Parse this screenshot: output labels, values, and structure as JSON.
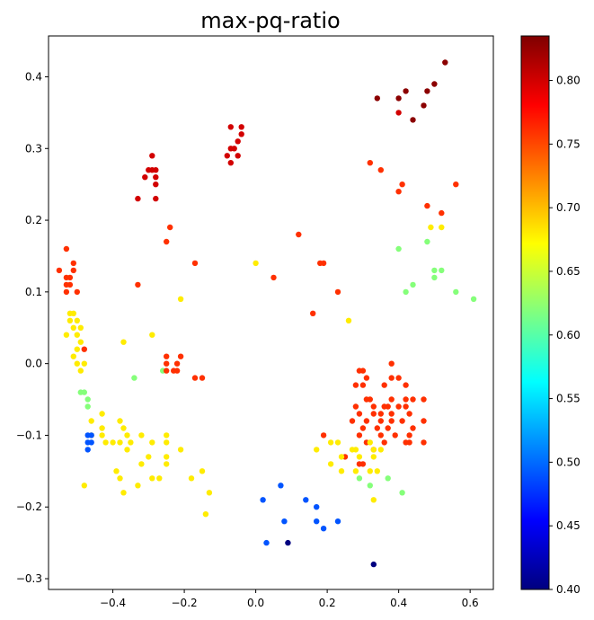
{
  "chart_data": {
    "type": "scatter",
    "title": "max-pq-ratio",
    "xlabel": "",
    "ylabel": "",
    "xlim": [
      -0.58,
      0.665
    ],
    "ylim": [
      -0.315,
      0.457
    ],
    "x_ticks": [
      -0.4,
      -0.2,
      0.0,
      0.2,
      0.4,
      0.6
    ],
    "x_tick_labels": [
      "−0.4",
      "−0.2",
      "0.0",
      "0.2",
      "0.4",
      "0.6"
    ],
    "y_ticks": [
      -0.3,
      -0.2,
      -0.1,
      0.0,
      0.1,
      0.2,
      0.3,
      0.4
    ],
    "y_tick_labels": [
      "−0.3",
      "−0.2",
      "−0.1",
      "0.0",
      "0.1",
      "0.2",
      "0.3",
      "0.4"
    ],
    "grid": false,
    "colorbar": {
      "colormap": "jet",
      "range": [
        0.4,
        0.835
      ],
      "ticks": [
        0.4,
        0.45,
        0.5,
        0.55,
        0.6,
        0.65,
        0.7,
        0.75,
        0.8
      ],
      "tick_labels": [
        "0.40",
        "0.45",
        "0.50",
        "0.55",
        "0.60",
        "0.65",
        "0.70",
        "0.75",
        "0.80"
      ]
    },
    "points": [
      {
        "x": 0.34,
        "y": 0.37,
        "c": 0.83
      },
      {
        "x": 0.4,
        "y": 0.37,
        "c": 0.83
      },
      {
        "x": 0.42,
        "y": 0.38,
        "c": 0.83
      },
      {
        "x": 0.47,
        "y": 0.36,
        "c": 0.83
      },
      {
        "x": 0.48,
        "y": 0.38,
        "c": 0.83
      },
      {
        "x": 0.5,
        "y": 0.39,
        "c": 0.83
      },
      {
        "x": 0.53,
        "y": 0.42,
        "c": 0.83
      },
      {
        "x": 0.44,
        "y": 0.34,
        "c": 0.83
      },
      {
        "x": 0.4,
        "y": 0.35,
        "c": 0.8
      },
      {
        "x": -0.07,
        "y": 0.33,
        "c": 0.8
      },
      {
        "x": -0.04,
        "y": 0.33,
        "c": 0.8
      },
      {
        "x": -0.04,
        "y": 0.32,
        "c": 0.8
      },
      {
        "x": -0.05,
        "y": 0.31,
        "c": 0.8
      },
      {
        "x": -0.07,
        "y": 0.3,
        "c": 0.8
      },
      {
        "x": -0.06,
        "y": 0.3,
        "c": 0.8
      },
      {
        "x": -0.05,
        "y": 0.29,
        "c": 0.8
      },
      {
        "x": -0.08,
        "y": 0.29,
        "c": 0.8
      },
      {
        "x": -0.07,
        "y": 0.28,
        "c": 0.8
      },
      {
        "x": -0.29,
        "y": 0.29,
        "c": 0.8
      },
      {
        "x": -0.29,
        "y": 0.27,
        "c": 0.8
      },
      {
        "x": -0.3,
        "y": 0.27,
        "c": 0.8
      },
      {
        "x": -0.28,
        "y": 0.27,
        "c": 0.8
      },
      {
        "x": -0.31,
        "y": 0.26,
        "c": 0.8
      },
      {
        "x": -0.28,
        "y": 0.26,
        "c": 0.8
      },
      {
        "x": -0.28,
        "y": 0.25,
        "c": 0.8
      },
      {
        "x": -0.33,
        "y": 0.23,
        "c": 0.8
      },
      {
        "x": -0.28,
        "y": 0.23,
        "c": 0.8
      },
      {
        "x": 0.32,
        "y": 0.28,
        "c": 0.76
      },
      {
        "x": 0.35,
        "y": 0.27,
        "c": 0.76
      },
      {
        "x": 0.4,
        "y": 0.24,
        "c": 0.76
      },
      {
        "x": 0.41,
        "y": 0.25,
        "c": 0.76
      },
      {
        "x": 0.56,
        "y": 0.25,
        "c": 0.76
      },
      {
        "x": 0.48,
        "y": 0.22,
        "c": 0.76
      },
      {
        "x": 0.52,
        "y": 0.21,
        "c": 0.76
      },
      {
        "x": -0.24,
        "y": 0.19,
        "c": 0.76
      },
      {
        "x": -0.25,
        "y": 0.17,
        "c": 0.76
      },
      {
        "x": -0.17,
        "y": 0.14,
        "c": 0.76
      },
      {
        "x": 0.05,
        "y": 0.12,
        "c": 0.76
      },
      {
        "x": 0.12,
        "y": 0.18,
        "c": 0.76
      },
      {
        "x": 0.18,
        "y": 0.14,
        "c": 0.76
      },
      {
        "x": 0.19,
        "y": 0.14,
        "c": 0.76
      },
      {
        "x": 0.23,
        "y": 0.1,
        "c": 0.76
      },
      {
        "x": 0.16,
        "y": 0.07,
        "c": 0.76
      },
      {
        "x": -0.33,
        "y": 0.11,
        "c": 0.76
      },
      {
        "x": 0.26,
        "y": 0.06,
        "c": 0.68
      },
      {
        "x": 0.0,
        "y": 0.14,
        "c": 0.68
      },
      {
        "x": -0.21,
        "y": 0.09,
        "c": 0.68
      },
      {
        "x": 0.49,
        "y": 0.19,
        "c": 0.68
      },
      {
        "x": 0.52,
        "y": 0.19,
        "c": 0.68
      },
      {
        "x": 0.4,
        "y": 0.16,
        "c": 0.62
      },
      {
        "x": 0.48,
        "y": 0.17,
        "c": 0.62
      },
      {
        "x": 0.5,
        "y": 0.13,
        "c": 0.62
      },
      {
        "x": 0.52,
        "y": 0.13,
        "c": 0.62
      },
      {
        "x": 0.5,
        "y": 0.12,
        "c": 0.62
      },
      {
        "x": 0.44,
        "y": 0.11,
        "c": 0.62
      },
      {
        "x": 0.42,
        "y": 0.1,
        "c": 0.62
      },
      {
        "x": 0.56,
        "y": 0.1,
        "c": 0.62
      },
      {
        "x": 0.61,
        "y": 0.09,
        "c": 0.62
      },
      {
        "x": -0.53,
        "y": 0.16,
        "c": 0.76
      },
      {
        "x": -0.51,
        "y": 0.14,
        "c": 0.76
      },
      {
        "x": -0.55,
        "y": 0.13,
        "c": 0.76
      },
      {
        "x": -0.51,
        "y": 0.13,
        "c": 0.76
      },
      {
        "x": -0.52,
        "y": 0.12,
        "c": 0.76
      },
      {
        "x": -0.53,
        "y": 0.12,
        "c": 0.76
      },
      {
        "x": -0.52,
        "y": 0.11,
        "c": 0.76
      },
      {
        "x": -0.53,
        "y": 0.11,
        "c": 0.76
      },
      {
        "x": -0.53,
        "y": 0.1,
        "c": 0.76
      },
      {
        "x": -0.5,
        "y": 0.1,
        "c": 0.76
      },
      {
        "x": -0.48,
        "y": 0.02,
        "c": 0.76
      },
      {
        "x": -0.52,
        "y": 0.07,
        "c": 0.68
      },
      {
        "x": -0.51,
        "y": 0.07,
        "c": 0.68
      },
      {
        "x": -0.5,
        "y": 0.06,
        "c": 0.68
      },
      {
        "x": -0.52,
        "y": 0.06,
        "c": 0.68
      },
      {
        "x": -0.49,
        "y": 0.05,
        "c": 0.68
      },
      {
        "x": -0.51,
        "y": 0.05,
        "c": 0.68
      },
      {
        "x": -0.53,
        "y": 0.04,
        "c": 0.68
      },
      {
        "x": -0.5,
        "y": 0.04,
        "c": 0.68
      },
      {
        "x": -0.49,
        "y": 0.03,
        "c": 0.68
      },
      {
        "x": -0.5,
        "y": 0.02,
        "c": 0.68
      },
      {
        "x": -0.51,
        "y": 0.01,
        "c": 0.68
      },
      {
        "x": -0.5,
        "y": 0.0,
        "c": 0.68
      },
      {
        "x": -0.48,
        "y": 0.0,
        "c": 0.68
      },
      {
        "x": -0.49,
        "y": -0.01,
        "c": 0.68
      },
      {
        "x": -0.37,
        "y": 0.03,
        "c": 0.68
      },
      {
        "x": -0.29,
        "y": 0.04,
        "c": 0.68
      },
      {
        "x": -0.49,
        "y": -0.04,
        "c": 0.62
      },
      {
        "x": -0.48,
        "y": -0.04,
        "c": 0.62
      },
      {
        "x": -0.47,
        "y": -0.05,
        "c": 0.62
      },
      {
        "x": -0.47,
        "y": -0.06,
        "c": 0.62
      },
      {
        "x": -0.34,
        "y": -0.02,
        "c": 0.62
      },
      {
        "x": -0.26,
        "y": -0.01,
        "c": 0.62
      },
      {
        "x": -0.25,
        "y": 0.01,
        "c": 0.76
      },
      {
        "x": -0.21,
        "y": 0.01,
        "c": 0.76
      },
      {
        "x": -0.22,
        "y": 0.0,
        "c": 0.76
      },
      {
        "x": -0.25,
        "y": -0.01,
        "c": 0.76
      },
      {
        "x": -0.23,
        "y": -0.01,
        "c": 0.76
      },
      {
        "x": -0.22,
        "y": -0.01,
        "c": 0.76
      },
      {
        "x": -0.25,
        "y": 0.0,
        "c": 0.76
      },
      {
        "x": -0.17,
        "y": -0.02,
        "c": 0.76
      },
      {
        "x": -0.15,
        "y": -0.02,
        "c": 0.76
      },
      {
        "x": -0.46,
        "y": -0.08,
        "c": 0.68
      },
      {
        "x": -0.43,
        "y": -0.07,
        "c": 0.68
      },
      {
        "x": -0.43,
        "y": -0.09,
        "c": 0.68
      },
      {
        "x": -0.38,
        "y": -0.08,
        "c": 0.68
      },
      {
        "x": -0.37,
        "y": -0.09,
        "c": 0.68
      },
      {
        "x": -0.36,
        "y": -0.1,
        "c": 0.68
      },
      {
        "x": -0.46,
        "y": -0.1,
        "c": 0.68
      },
      {
        "x": -0.43,
        "y": -0.1,
        "c": 0.68
      },
      {
        "x": -0.42,
        "y": -0.11,
        "c": 0.68
      },
      {
        "x": -0.4,
        "y": -0.11,
        "c": 0.68
      },
      {
        "x": -0.38,
        "y": -0.11,
        "c": 0.68
      },
      {
        "x": -0.36,
        "y": -0.12,
        "c": 0.68
      },
      {
        "x": -0.35,
        "y": -0.11,
        "c": 0.68
      },
      {
        "x": -0.32,
        "y": -0.1,
        "c": 0.68
      },
      {
        "x": -0.29,
        "y": -0.11,
        "c": 0.68
      },
      {
        "x": -0.25,
        "y": -0.1,
        "c": 0.68
      },
      {
        "x": -0.25,
        "y": -0.11,
        "c": 0.68
      },
      {
        "x": -0.21,
        "y": -0.12,
        "c": 0.68
      },
      {
        "x": -0.32,
        "y": -0.14,
        "c": 0.68
      },
      {
        "x": -0.3,
        "y": -0.13,
        "c": 0.68
      },
      {
        "x": -0.25,
        "y": -0.13,
        "c": 0.68
      },
      {
        "x": -0.25,
        "y": -0.14,
        "c": 0.68
      },
      {
        "x": -0.29,
        "y": -0.16,
        "c": 0.68
      },
      {
        "x": -0.27,
        "y": -0.16,
        "c": 0.68
      },
      {
        "x": -0.39,
        "y": -0.15,
        "c": 0.68
      },
      {
        "x": -0.38,
        "y": -0.16,
        "c": 0.68
      },
      {
        "x": -0.37,
        "y": -0.18,
        "c": 0.68
      },
      {
        "x": -0.33,
        "y": -0.17,
        "c": 0.68
      },
      {
        "x": -0.18,
        "y": -0.16,
        "c": 0.68
      },
      {
        "x": -0.15,
        "y": -0.15,
        "c": 0.68
      },
      {
        "x": -0.13,
        "y": -0.18,
        "c": 0.68
      },
      {
        "x": -0.14,
        "y": -0.21,
        "c": 0.68
      },
      {
        "x": -0.48,
        "y": -0.17,
        "c": 0.68
      },
      {
        "x": -0.47,
        "y": -0.1,
        "c": 0.49
      },
      {
        "x": -0.46,
        "y": -0.1,
        "c": 0.49
      },
      {
        "x": -0.47,
        "y": -0.11,
        "c": 0.49
      },
      {
        "x": -0.46,
        "y": -0.11,
        "c": 0.49
      },
      {
        "x": -0.47,
        "y": -0.12,
        "c": 0.49
      },
      {
        "x": 0.29,
        "y": -0.01,
        "c": 0.76
      },
      {
        "x": 0.3,
        "y": -0.01,
        "c": 0.76
      },
      {
        "x": 0.38,
        "y": 0.0,
        "c": 0.76
      },
      {
        "x": 0.31,
        "y": -0.02,
        "c": 0.76
      },
      {
        "x": 0.38,
        "y": -0.02,
        "c": 0.76
      },
      {
        "x": 0.4,
        "y": -0.02,
        "c": 0.76
      },
      {
        "x": 0.28,
        "y": -0.03,
        "c": 0.76
      },
      {
        "x": 0.3,
        "y": -0.03,
        "c": 0.76
      },
      {
        "x": 0.36,
        "y": -0.03,
        "c": 0.76
      },
      {
        "x": 0.42,
        "y": -0.03,
        "c": 0.76
      },
      {
        "x": 0.31,
        "y": -0.05,
        "c": 0.76
      },
      {
        "x": 0.32,
        "y": -0.05,
        "c": 0.76
      },
      {
        "x": 0.38,
        "y": -0.05,
        "c": 0.76
      },
      {
        "x": 0.42,
        "y": -0.05,
        "c": 0.76
      },
      {
        "x": 0.44,
        "y": -0.05,
        "c": 0.76
      },
      {
        "x": 0.47,
        "y": -0.05,
        "c": 0.76
      },
      {
        "x": 0.28,
        "y": -0.06,
        "c": 0.76
      },
      {
        "x": 0.33,
        "y": -0.06,
        "c": 0.76
      },
      {
        "x": 0.36,
        "y": -0.06,
        "c": 0.76
      },
      {
        "x": 0.37,
        "y": -0.06,
        "c": 0.76
      },
      {
        "x": 0.4,
        "y": -0.06,
        "c": 0.76
      },
      {
        "x": 0.29,
        "y": -0.07,
        "c": 0.76
      },
      {
        "x": 0.33,
        "y": -0.07,
        "c": 0.76
      },
      {
        "x": 0.35,
        "y": -0.07,
        "c": 0.76
      },
      {
        "x": 0.38,
        "y": -0.07,
        "c": 0.76
      },
      {
        "x": 0.42,
        "y": -0.06,
        "c": 0.76
      },
      {
        "x": 0.43,
        "y": -0.07,
        "c": 0.76
      },
      {
        "x": 0.27,
        "y": -0.08,
        "c": 0.76
      },
      {
        "x": 0.31,
        "y": -0.08,
        "c": 0.76
      },
      {
        "x": 0.35,
        "y": -0.08,
        "c": 0.76
      },
      {
        "x": 0.38,
        "y": -0.08,
        "c": 0.76
      },
      {
        "x": 0.41,
        "y": -0.08,
        "c": 0.76
      },
      {
        "x": 0.47,
        "y": -0.08,
        "c": 0.76
      },
      {
        "x": 0.3,
        "y": -0.09,
        "c": 0.76
      },
      {
        "x": 0.34,
        "y": -0.09,
        "c": 0.76
      },
      {
        "x": 0.37,
        "y": -0.09,
        "c": 0.76
      },
      {
        "x": 0.44,
        "y": -0.09,
        "c": 0.76
      },
      {
        "x": 0.29,
        "y": -0.1,
        "c": 0.76
      },
      {
        "x": 0.35,
        "y": -0.1,
        "c": 0.76
      },
      {
        "x": 0.39,
        "y": -0.1,
        "c": 0.76
      },
      {
        "x": 0.43,
        "y": -0.1,
        "c": 0.76
      },
      {
        "x": 0.31,
        "y": -0.11,
        "c": 0.76
      },
      {
        "x": 0.36,
        "y": -0.11,
        "c": 0.76
      },
      {
        "x": 0.42,
        "y": -0.11,
        "c": 0.76
      },
      {
        "x": 0.47,
        "y": -0.11,
        "c": 0.76
      },
      {
        "x": 0.33,
        "y": -0.12,
        "c": 0.76
      },
      {
        "x": 0.43,
        "y": -0.11,
        "c": 0.76
      },
      {
        "x": 0.19,
        "y": -0.1,
        "c": 0.76
      },
      {
        "x": 0.25,
        "y": -0.13,
        "c": 0.76
      },
      {
        "x": 0.29,
        "y": -0.14,
        "c": 0.76
      },
      {
        "x": 0.3,
        "y": -0.14,
        "c": 0.76
      },
      {
        "x": 0.21,
        "y": -0.11,
        "c": 0.68
      },
      {
        "x": 0.23,
        "y": -0.11,
        "c": 0.68
      },
      {
        "x": 0.27,
        "y": -0.12,
        "c": 0.68
      },
      {
        "x": 0.28,
        "y": -0.12,
        "c": 0.68
      },
      {
        "x": 0.32,
        "y": -0.11,
        "c": 0.68
      },
      {
        "x": 0.33,
        "y": -0.12,
        "c": 0.68
      },
      {
        "x": 0.35,
        "y": -0.12,
        "c": 0.68
      },
      {
        "x": 0.33,
        "y": -0.13,
        "c": 0.68
      },
      {
        "x": 0.29,
        "y": -0.13,
        "c": 0.68
      },
      {
        "x": 0.24,
        "y": -0.13,
        "c": 0.68
      },
      {
        "x": 0.21,
        "y": -0.14,
        "c": 0.68
      },
      {
        "x": 0.24,
        "y": -0.15,
        "c": 0.68
      },
      {
        "x": 0.28,
        "y": -0.15,
        "c": 0.68
      },
      {
        "x": 0.32,
        "y": -0.15,
        "c": 0.68
      },
      {
        "x": 0.34,
        "y": -0.15,
        "c": 0.68
      },
      {
        "x": 0.17,
        "y": -0.12,
        "c": 0.68
      },
      {
        "x": 0.33,
        "y": -0.19,
        "c": 0.68
      },
      {
        "x": 0.29,
        "y": -0.16,
        "c": 0.62
      },
      {
        "x": 0.32,
        "y": -0.17,
        "c": 0.62
      },
      {
        "x": 0.37,
        "y": -0.16,
        "c": 0.62
      },
      {
        "x": 0.41,
        "y": -0.18,
        "c": 0.62
      },
      {
        "x": 0.02,
        "y": -0.19,
        "c": 0.49
      },
      {
        "x": 0.07,
        "y": -0.17,
        "c": 0.49
      },
      {
        "x": 0.14,
        "y": -0.19,
        "c": 0.49
      },
      {
        "x": 0.17,
        "y": -0.2,
        "c": 0.49
      },
      {
        "x": 0.08,
        "y": -0.22,
        "c": 0.49
      },
      {
        "x": 0.17,
        "y": -0.22,
        "c": 0.49
      },
      {
        "x": 0.23,
        "y": -0.22,
        "c": 0.49
      },
      {
        "x": 0.19,
        "y": -0.23,
        "c": 0.49
      },
      {
        "x": 0.03,
        "y": -0.25,
        "c": 0.49
      },
      {
        "x": 0.09,
        "y": -0.25,
        "c": 0.4
      },
      {
        "x": 0.33,
        "y": -0.28,
        "c": 0.4
      }
    ]
  }
}
